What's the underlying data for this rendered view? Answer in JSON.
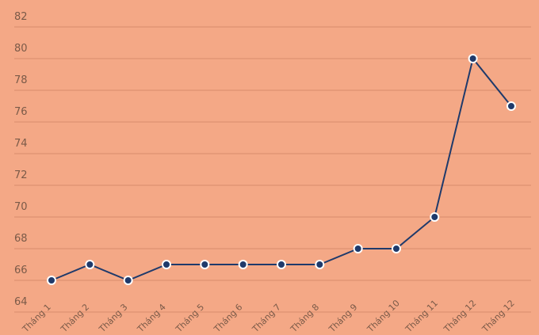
{
  "chart_data": {
    "type": "line",
    "categories": [
      "Tháng 1",
      "Tháng 2",
      "Tháng 3",
      "Tháng 4",
      "Tháng 5",
      "Tháng 6",
      "Tháng 7",
      "Tháng 8",
      "Tháng 9",
      "Tháng 10",
      "Tháng 11",
      "Tháng 12",
      "Tháng 12"
    ],
    "values": [
      66,
      67,
      66,
      67,
      67,
      67,
      67,
      67,
      68,
      68,
      70,
      80,
      77
    ],
    "yticks": [
      64,
      66,
      68,
      70,
      72,
      74,
      76,
      78,
      80,
      82
    ],
    "ylim": [
      64,
      82
    ],
    "grid": true,
    "colors": {
      "background": "#f4a886",
      "line": "#1f3a6b",
      "marker_fill": "#1f3a6b",
      "marker_stroke": "#ffffff",
      "grid": "#d98c6c"
    }
  }
}
